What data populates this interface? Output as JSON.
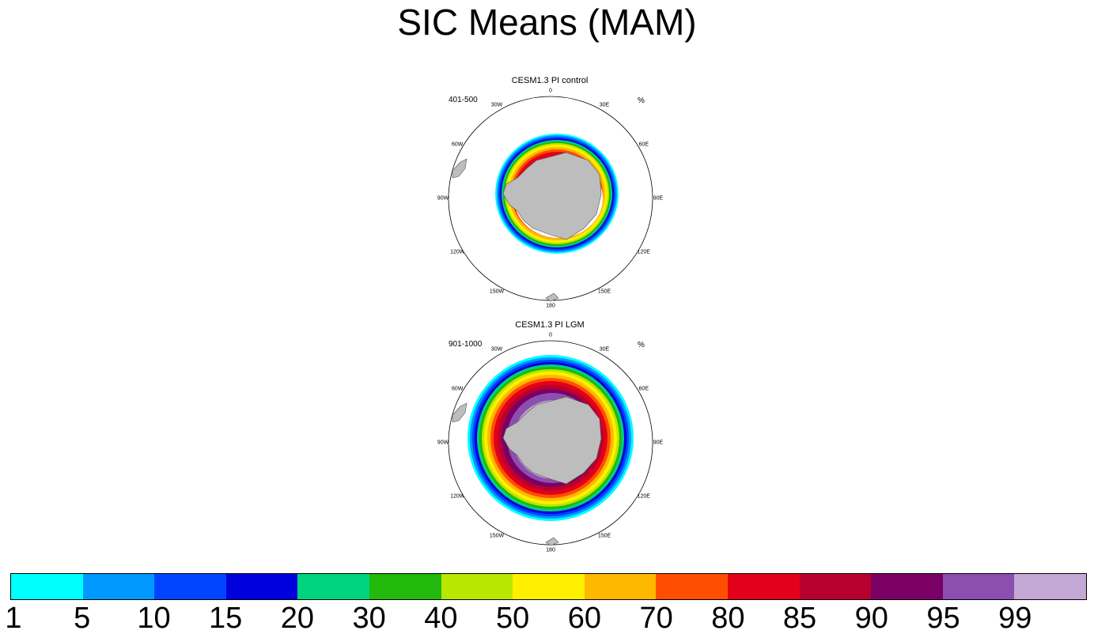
{
  "title": "SIC Means (MAM)",
  "panels": [
    {
      "title": "CESM1.3 PI control",
      "period": "401-500",
      "unit": "%",
      "lon_labels": [
        "0",
        "30E",
        "60E",
        "90E",
        "120E",
        "150E",
        "180",
        "150W",
        "120W",
        "90W",
        "60W",
        "30W"
      ]
    },
    {
      "title": "CESM1.3 PI LGM",
      "period": "901-1000",
      "unit": "%",
      "lon_labels": [
        "0",
        "30E",
        "60E",
        "90E",
        "120E",
        "150E",
        "180",
        "150W",
        "120W",
        "90W",
        "60W",
        "30W"
      ]
    }
  ],
  "colorbar": {
    "levels": [
      "1",
      "5",
      "10",
      "15",
      "20",
      "30",
      "40",
      "50",
      "60",
      "70",
      "80",
      "85",
      "90",
      "95",
      "99"
    ],
    "colors": [
      "#00ffff",
      "#0099ff",
      "#0044ff",
      "#0000dd",
      "#00d37d",
      "#22b80c",
      "#b8e800",
      "#ffef00",
      "#ffb800",
      "#ff4e00",
      "#e2001a",
      "#b8002f",
      "#7a0066",
      "#8c4fb0",
      "#c4a8d6"
    ]
  }
}
